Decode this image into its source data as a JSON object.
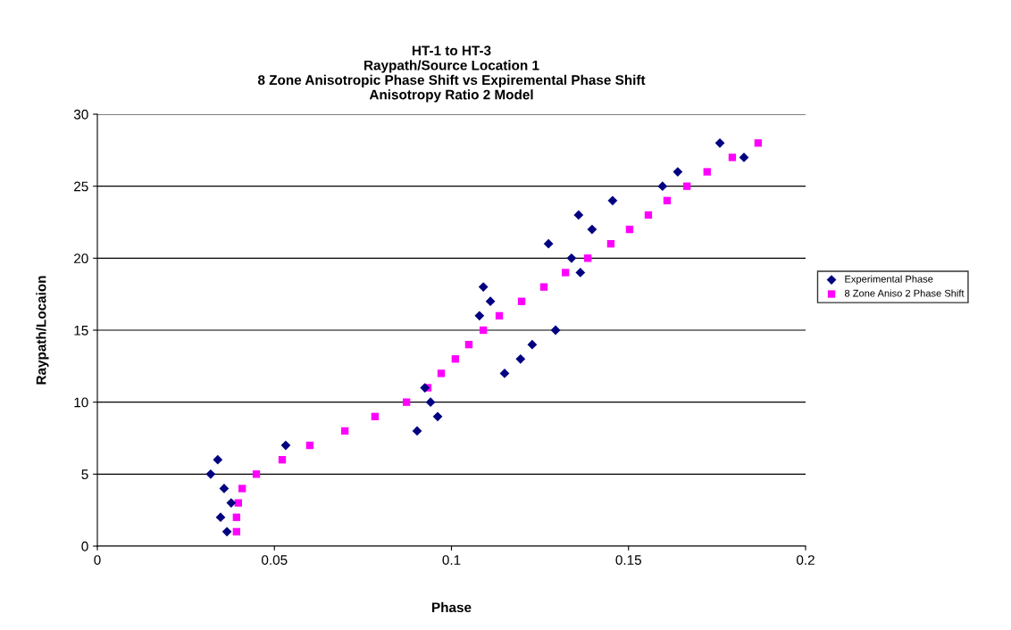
{
  "chart_data": {
    "type": "scatter",
    "title": "HT-1 to HT-3\nRaypath/Source Location 1\n8 Zone Anisotropic Phase Shift vs Expiremental Phase Shift\nAnisotropy Ratio 2 Model",
    "xlabel": "Phase",
    "ylabel": "Raypath/Locaion",
    "xlim": [
      0,
      0.2
    ],
    "xticks": [
      0,
      0.05,
      0.1,
      0.15,
      0.2
    ],
    "ylim": [
      0,
      30
    ],
    "yticks": [
      0,
      5,
      10,
      15,
      20,
      25,
      30
    ],
    "grid": "y",
    "legend": "right",
    "series": [
      {
        "name": "Experimental Phase",
        "color": "#000080",
        "marker": "diamond",
        "x": [
          0.0366,
          0.0348,
          0.0378,
          0.0358,
          0.032,
          0.034,
          0.0532,
          0.0903,
          0.0961,
          0.0941,
          0.0925,
          0.115,
          0.1195,
          0.1228,
          0.1294,
          0.1079,
          0.111,
          0.109,
          0.1364,
          0.1339,
          0.1274,
          0.1397,
          0.1359,
          0.1455,
          0.1596,
          0.1639,
          0.1826,
          0.1758
        ],
        "values": [
          1,
          2,
          3,
          4,
          5,
          6,
          7,
          8,
          9,
          10,
          11,
          12,
          13,
          14,
          15,
          16,
          17,
          18,
          19,
          20,
          21,
          22,
          23,
          24,
          25,
          26,
          27,
          28
        ]
      },
      {
        "name": "8 Zone Aniso 2 Phase Shift",
        "color": "#ff00ff",
        "marker": "square",
        "x": [
          0.0393,
          0.0393,
          0.0398,
          0.0409,
          0.0449,
          0.0522,
          0.06,
          0.0699,
          0.0784,
          0.0873,
          0.0933,
          0.0971,
          0.1011,
          0.1049,
          0.109,
          0.1135,
          0.1198,
          0.1261,
          0.1322,
          0.1385,
          0.145,
          0.1503,
          0.1556,
          0.1609,
          0.1665,
          0.1722,
          0.1793,
          0.1866
        ],
        "values": [
          1,
          2,
          3,
          4,
          5,
          6,
          7,
          8,
          9,
          10,
          11,
          12,
          13,
          14,
          15,
          16,
          17,
          18,
          19,
          20,
          21,
          22,
          23,
          24,
          25,
          26,
          27,
          28
        ]
      }
    ]
  }
}
